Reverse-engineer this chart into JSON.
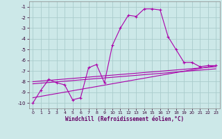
{
  "xlabel": "Windchill (Refroidissement éolien,°C)",
  "background_color": "#cce8e8",
  "grid_color": "#aacccc",
  "line_color": "#aa00aa",
  "xlim": [
    -0.5,
    23.5
  ],
  "ylim": [
    -10.5,
    -0.5
  ],
  "yticks": [
    -10,
    -9,
    -8,
    -7,
    -6,
    -5,
    -4,
    -3,
    -2,
    -1
  ],
  "xticks": [
    0,
    1,
    2,
    3,
    4,
    5,
    6,
    7,
    8,
    9,
    10,
    11,
    12,
    13,
    14,
    15,
    16,
    17,
    18,
    19,
    20,
    21,
    22,
    23
  ],
  "curve1_x": [
    0,
    1,
    2,
    3,
    4,
    5,
    6,
    7,
    8,
    9,
    10,
    11,
    12,
    13,
    14,
    15,
    16,
    17,
    18,
    19,
    20,
    21,
    22,
    23
  ],
  "curve1_y": [
    -10.0,
    -8.8,
    -7.8,
    -8.1,
    -8.3,
    -9.7,
    -9.5,
    -6.7,
    -6.4,
    -8.1,
    -4.6,
    -3.0,
    -1.8,
    -1.9,
    -1.2,
    -1.2,
    -1.3,
    -3.8,
    -5.0,
    -6.2,
    -6.2,
    -6.6,
    -6.5,
    -6.5
  ],
  "curve2_x": [
    0,
    23
  ],
  "curve2_y": [
    -9.5,
    -6.5
  ],
  "curve3_x": [
    0,
    23
  ],
  "curve3_y": [
    -8.2,
    -6.8
  ],
  "curve4_x": [
    0,
    23
  ],
  "curve4_y": [
    -8.0,
    -6.6
  ]
}
